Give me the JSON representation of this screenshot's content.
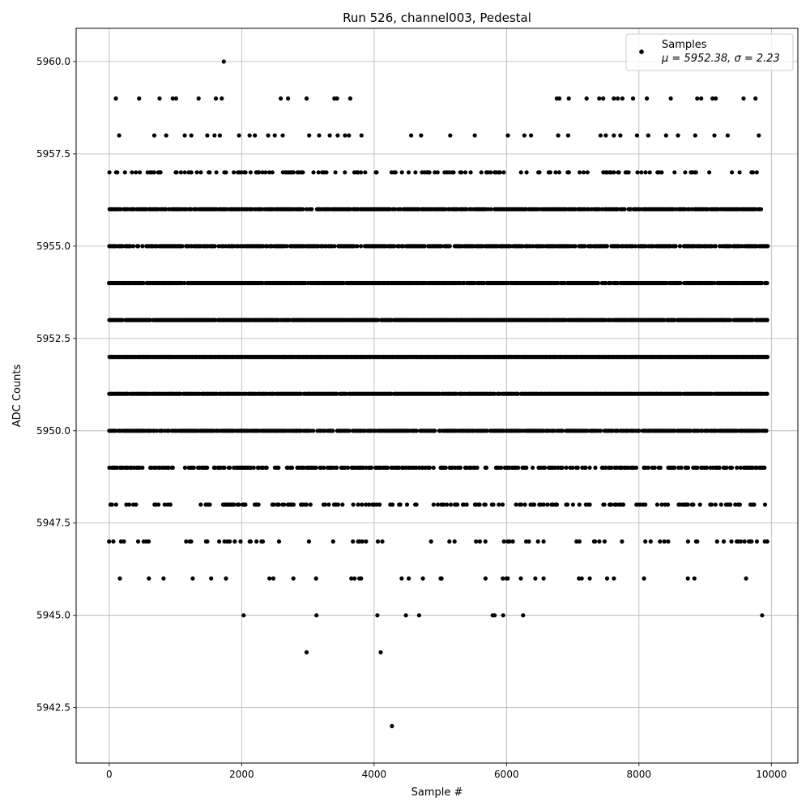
{
  "chart_data": {
    "type": "scatter",
    "title": "Run 526, channel003, Pedestal",
    "xlabel": "Sample #",
    "ylabel": "ADC Counts",
    "xlim": [
      -500,
      10400
    ],
    "ylim": [
      5941.0,
      5960.9
    ],
    "xticks": [
      {
        "value": 0,
        "label": "0"
      },
      {
        "value": 2000,
        "label": "2000"
      },
      {
        "value": 4000,
        "label": "4000"
      },
      {
        "value": 6000,
        "label": "6000"
      },
      {
        "value": 8000,
        "label": "8000"
      },
      {
        "value": 10000,
        "label": "10000"
      }
    ],
    "yticks": [
      {
        "value": 5942.5,
        "label": "5942.5"
      },
      {
        "value": 5945.0,
        "label": "5945.0"
      },
      {
        "value": 5947.5,
        "label": "5947.5"
      },
      {
        "value": 5950.0,
        "label": "5950.0"
      },
      {
        "value": 5952.5,
        "label": "5952.5"
      },
      {
        "value": 5955.0,
        "label": "5955.0"
      },
      {
        "value": 5957.5,
        "label": "5957.5"
      },
      {
        "value": 5960.0,
        "label": "5960.0"
      }
    ],
    "grid": true,
    "legend_position": "top-right",
    "series": [
      {
        "name": "Samples",
        "stats_label": "μ = 5952.38, σ = 2.23",
        "color": "#000000",
        "marker": "dot",
        "x_range": [
          0,
          9950
        ],
        "points": [
          [
            1730,
            5960
          ],
          [
            100,
            5959
          ],
          [
            450,
            5959
          ],
          [
            760,
            5959
          ],
          [
            960,
            5959
          ],
          [
            1010,
            5959
          ],
          [
            1350,
            5959
          ],
          [
            1610,
            5959
          ],
          [
            1700,
            5959
          ],
          [
            2590,
            5959
          ],
          [
            2700,
            5959
          ],
          [
            2980,
            5959
          ],
          [
            3400,
            5959
          ],
          [
            3440,
            5959
          ],
          [
            3640,
            5959
          ],
          [
            6760,
            5959
          ],
          [
            6800,
            5959
          ],
          [
            6940,
            5959
          ],
          [
            7210,
            5959
          ],
          [
            7400,
            5959
          ],
          [
            7460,
            5959
          ],
          [
            7620,
            5959
          ],
          [
            7680,
            5959
          ],
          [
            7750,
            5959
          ],
          [
            7910,
            5959
          ],
          [
            8120,
            5959
          ],
          [
            8480,
            5959
          ],
          [
            8880,
            5959
          ],
          [
            8940,
            5959
          ],
          [
            9110,
            5959
          ],
          [
            9160,
            5959
          ],
          [
            9580,
            5959
          ],
          [
            9760,
            5959
          ],
          [
            150,
            5958
          ],
          [
            680,
            5958
          ],
          [
            860,
            5958
          ],
          [
            1140,
            5958
          ],
          [
            1240,
            5958
          ],
          [
            1480,
            5958
          ],
          [
            1590,
            5958
          ],
          [
            1670,
            5958
          ],
          [
            1960,
            5958
          ],
          [
            2120,
            5958
          ],
          [
            2200,
            5958
          ],
          [
            2400,
            5958
          ],
          [
            2500,
            5958
          ],
          [
            2620,
            5958
          ],
          [
            3020,
            5958
          ],
          [
            3170,
            5958
          ],
          [
            3330,
            5958
          ],
          [
            3450,
            5958
          ],
          [
            3560,
            5958
          ],
          [
            3620,
            5958
          ],
          [
            3810,
            5958
          ],
          [
            4560,
            5958
          ],
          [
            4710,
            5958
          ],
          [
            5150,
            5958
          ],
          [
            5520,
            5958
          ],
          [
            6020,
            5958
          ],
          [
            6270,
            5958
          ],
          [
            6370,
            5958
          ],
          [
            6780,
            5958
          ],
          [
            6930,
            5958
          ],
          [
            7420,
            5958
          ],
          [
            7500,
            5958
          ],
          [
            7620,
            5958
          ],
          [
            7720,
            5958
          ],
          [
            7970,
            5958
          ],
          [
            8140,
            5958
          ],
          [
            8410,
            5958
          ],
          [
            8590,
            5958
          ],
          [
            8850,
            5958
          ],
          [
            9140,
            5958
          ],
          [
            9340,
            5958
          ],
          [
            9810,
            5958
          ],
          [
            5950,
            5945
          ],
          [
            2030,
            5945
          ],
          [
            3130,
            5945
          ],
          [
            4050,
            5945
          ],
          [
            4480,
            5945
          ],
          [
            4680,
            5945
          ],
          [
            5790,
            5945
          ],
          [
            5820,
            5945
          ],
          [
            6250,
            5945
          ],
          [
            9860,
            5945
          ],
          [
            2980,
            5944
          ],
          [
            4100,
            5944
          ],
          [
            4270,
            5942
          ]
        ],
        "dense_bands": [
          {
            "y": 5957,
            "from": 0,
            "to": 9850,
            "density": 0.28
          },
          {
            "y": 5956,
            "from": 0,
            "to": 9850,
            "density": 0.85
          },
          {
            "y": 5955,
            "from": 0,
            "to": 9950,
            "density": 0.8
          },
          {
            "y": 5954,
            "from": 0,
            "to": 9950,
            "density": 0.95
          },
          {
            "y": 5953,
            "from": 0,
            "to": 9950,
            "density": 0.95
          },
          {
            "y": 5952,
            "from": 0,
            "to": 9950,
            "density": 1.0
          },
          {
            "y": 5951,
            "from": 0,
            "to": 9950,
            "density": 0.95
          },
          {
            "y": 5950,
            "from": 0,
            "to": 9950,
            "density": 0.85
          },
          {
            "y": 5949,
            "from": 0,
            "to": 9950,
            "density": 0.55
          },
          {
            "y": 5948,
            "from": 0,
            "to": 9950,
            "density": 0.3
          },
          {
            "y": 5947,
            "from": 0,
            "to": 9950,
            "density": 0.14
          },
          {
            "y": 5946,
            "from": 0,
            "to": 9950,
            "density": 0.08
          }
        ]
      }
    ]
  }
}
